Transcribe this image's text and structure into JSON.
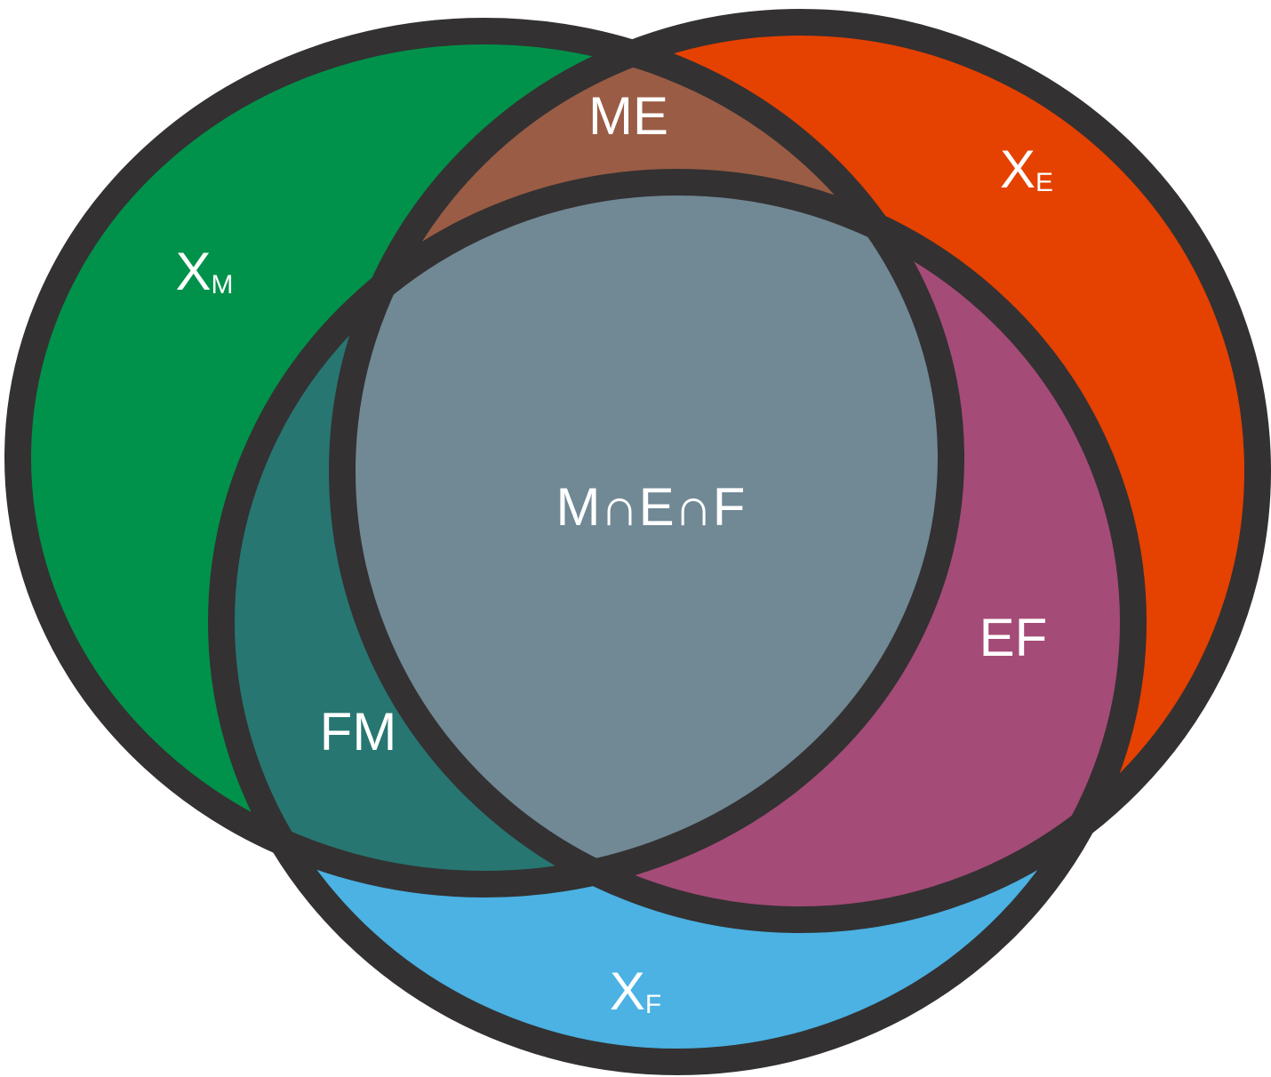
{
  "regions": [
    {
      "text": "X",
      "sub": "M"
    },
    {
      "text": "X",
      "sub": "E"
    },
    {
      "text": "X",
      "sub": "F"
    },
    {
      "text": "ME"
    },
    {
      "text": "FM"
    },
    {
      "text": "EF"
    },
    {
      "text": "M∩E∩F"
    }
  ]
}
